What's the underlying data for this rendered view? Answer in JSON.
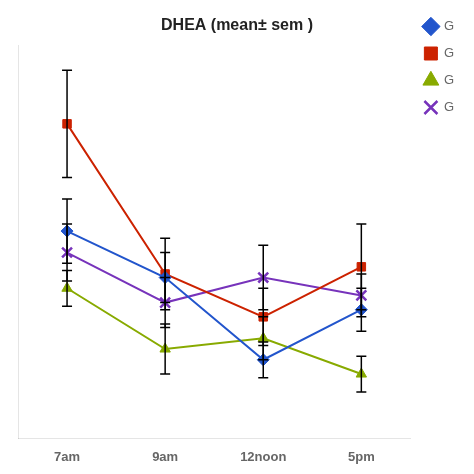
{
  "chart_data": {
    "type": "line",
    "title": "DHEA (mean± sem )",
    "categories": [
      "7am",
      "9am",
      "12noon",
      "5pm"
    ],
    "series": [
      {
        "name": "G",
        "color": "#2255cc",
        "marker": "diamond",
        "values": [
          68,
          55,
          32,
          46
        ],
        "errors": [
          9,
          7,
          5,
          6
        ]
      },
      {
        "name": "G",
        "color": "#cc2200",
        "marker": "square",
        "values": [
          98,
          56,
          44,
          58
        ],
        "errors": [
          15,
          10,
          8,
          12
        ]
      },
      {
        "name": "G",
        "color": "#88aa00",
        "marker": "triangle",
        "values": [
          52,
          35,
          38,
          28
        ],
        "errors": [
          5,
          7,
          6,
          5
        ]
      },
      {
        "name": "G",
        "color": "#7733bb",
        "marker": "x",
        "values": [
          62,
          48,
          55,
          50
        ],
        "errors": [
          8,
          7,
          9,
          6
        ]
      }
    ],
    "ylim": [
      10,
      120
    ],
    "grid": false,
    "legend": "right",
    "tick_labels": "x"
  }
}
